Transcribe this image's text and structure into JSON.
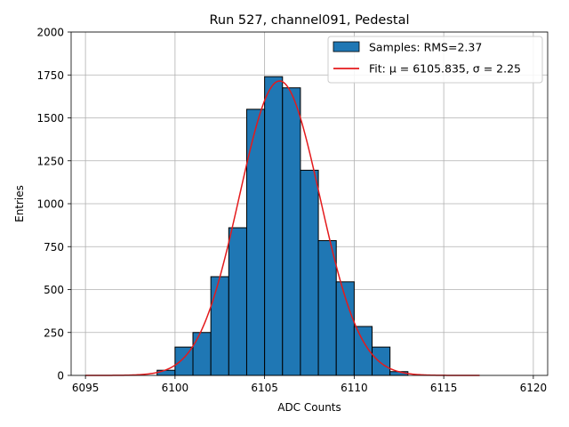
{
  "chart_data": {
    "type": "bar",
    "title": "Run 527, channel091, Pedestal",
    "xlabel": "ADC Counts",
    "ylabel": "Entries",
    "xlim": [
      6094.2,
      6120.8
    ],
    "ylim": [
      0,
      2000
    ],
    "xticks": [
      6095,
      6100,
      6105,
      6110,
      6115,
      6120
    ],
    "yticks": [
      0,
      250,
      500,
      750,
      1000,
      1250,
      1500,
      1750,
      2000
    ],
    "grid": true,
    "legend_position": "top-right",
    "bin_width": 1,
    "histogram": {
      "name": "Samples: RMS=2.37",
      "color": "#1f77b4",
      "edge_color": "#000000",
      "bin_edges": [
        6099,
        6100,
        6101,
        6102,
        6103,
        6104,
        6105,
        6106,
        6107,
        6108,
        6109,
        6110,
        6111,
        6112,
        6113
      ],
      "counts": [
        30,
        165,
        250,
        575,
        860,
        1550,
        1740,
        1675,
        1195,
        785,
        545,
        285,
        165,
        22
      ]
    },
    "fit": {
      "name": "Fit: μ = 6105.835, σ = 2.25",
      "color": "#e41a1c",
      "mu": 6105.835,
      "sigma": 2.25,
      "amplitude": 1715,
      "x_range": [
        6095,
        6117
      ]
    }
  }
}
